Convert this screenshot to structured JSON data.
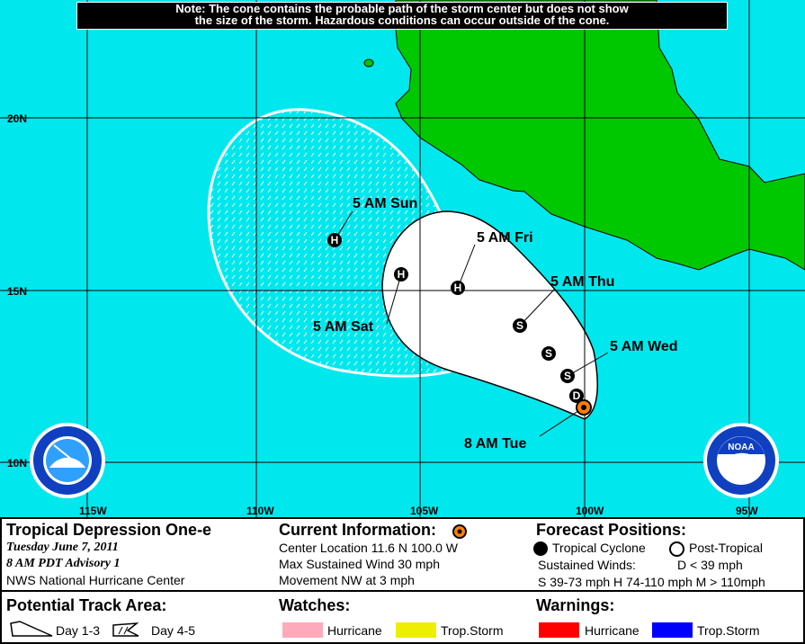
{
  "note": {
    "line1": "Note: The cone contains the probable path of the storm center but does not show",
    "line2": "the size of the storm. Hazardous conditions can occur outside of the cone."
  },
  "map": {
    "colors": {
      "ocean": "#00e8ee",
      "land": "#00c800",
      "cone_day13": "#ffffff",
      "current": "#ff8000"
    },
    "lon_labels": [
      "115W",
      "110W",
      "105W",
      "100W",
      "95W"
    ],
    "lat_labels": [
      "20N",
      "15N",
      "10N"
    ],
    "current_position": {
      "lat": 11.6,
      "lon": -100.0
    },
    "forecast_points": [
      {
        "symbol": "D",
        "label": ""
      },
      {
        "symbol": "S",
        "label": "5 AM Wed"
      },
      {
        "symbol": "S",
        "label": ""
      },
      {
        "symbol": "S",
        "label": "5 AM Thu"
      },
      {
        "symbol": "H",
        "label": "5 AM Fri"
      },
      {
        "symbol": "H",
        "label": "5 AM Sat"
      },
      {
        "symbol": "H",
        "label": "5 AM Sun"
      }
    ],
    "current_label": "8 AM Tue",
    "logos": {
      "left": "NATIONAL WEATHER SERVICE",
      "right": "NOAA"
    }
  },
  "legend": {
    "storm_name": "Tropical Depression One-e",
    "date": "Tuesday   June 7, 2011",
    "advisory": "8 AM PDT Advisory 1",
    "center": "NWS National Hurricane Center",
    "current_title": "Current Information:",
    "center_location": "Center Location 11.6 N  100.0 W",
    "max_wind": "Max Sustained Wind  30 mph",
    "movement": "Movement NW at  3 mph",
    "forecast_title": "Forecast Positions:",
    "tropical_cyclone": "Tropical Cyclone",
    "post_tropical": "Post-Tropical",
    "sustained_winds": "Sustained Winds:",
    "d_def": "D  < 39 mph",
    "shm_def": "S  39-73 mph  H  74-110 mph  M  > 110mph",
    "track_title": "Potential Track Area:",
    "day13": "Day 1-3",
    "day45": "Day 4-5",
    "watches_title": "Watches:",
    "watch_hurricane": "Hurricane",
    "watch_ts": "Trop.Storm",
    "warnings_title": "Warnings:",
    "warn_hurricane": "Hurricane",
    "warn_ts": "Trop.Storm",
    "colors": {
      "watch_hurricane": "#ffaabb",
      "watch_ts": "#eeee00",
      "warn_hurricane": "#ff0000",
      "warn_ts": "#0000ff"
    }
  }
}
